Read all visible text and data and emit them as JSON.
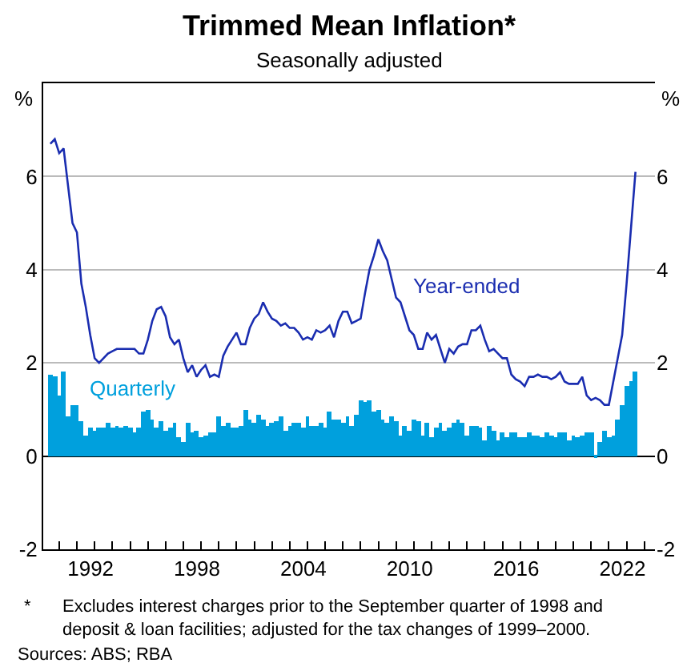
{
  "chart_data": {
    "type": "bar",
    "title": "Trimmed Mean Inflation*",
    "subtitle": "Seasonally adjusted",
    "ylabel": "%",
    "y2label": "%",
    "x": [
      1989.5,
      1989.75,
      1990,
      1990.25,
      1990.5,
      1990.75,
      1991,
      1991.25,
      1991.5,
      1991.75,
      1992,
      1992.25,
      1992.5,
      1992.75,
      1993,
      1993.25,
      1993.5,
      1993.75,
      1994,
      1994.25,
      1994.5,
      1994.75,
      1995,
      1995.25,
      1995.5,
      1995.75,
      1996,
      1996.25,
      1996.5,
      1996.75,
      1997,
      1997.25,
      1997.5,
      1997.75,
      1998,
      1998.25,
      1998.5,
      1998.75,
      1999,
      1999.25,
      1999.5,
      1999.75,
      2000,
      2000.25,
      2000.5,
      2000.75,
      2001,
      2001.25,
      2001.5,
      2001.75,
      2002,
      2002.25,
      2002.5,
      2002.75,
      2003,
      2003.25,
      2003.5,
      2003.75,
      2004,
      2004.25,
      2004.5,
      2004.75,
      2005,
      2005.25,
      2005.5,
      2005.75,
      2006,
      2006.25,
      2006.5,
      2006.75,
      2007,
      2007.25,
      2007.5,
      2007.75,
      2008,
      2008.25,
      2008.5,
      2008.75,
      2009,
      2009.25,
      2009.5,
      2009.75,
      2010,
      2010.25,
      2010.5,
      2010.75,
      2011,
      2011.25,
      2011.5,
      2011.75,
      2012,
      2012.25,
      2012.5,
      2012.75,
      2013,
      2013.25,
      2013.5,
      2013.75,
      2014,
      2014.25,
      2014.5,
      2014.75,
      2015,
      2015.25,
      2015.5,
      2015.75,
      2016,
      2016.25,
      2016.5,
      2016.75,
      2017,
      2017.25,
      2017.5,
      2017.75,
      2018,
      2018.25,
      2018.5,
      2018.75,
      2019,
      2019.25,
      2019.5,
      2019.75,
      2020,
      2020.25,
      2020.5,
      2020.75,
      2021,
      2021.25,
      2021.5,
      2021.75,
      2022,
      2022.25,
      2022.5
    ],
    "series": [
      {
        "name": "Quarterly",
        "color": "#00a0dd",
        "values": [
          1.75,
          1.7,
          1.3,
          1.8,
          0.85,
          1.1,
          1.1,
          0.75,
          0.45,
          0.6,
          0.55,
          0.6,
          0.6,
          0.7,
          0.6,
          0.65,
          0.6,
          0.65,
          0.6,
          0.5,
          0.6,
          0.95,
          1.0,
          0.8,
          0.6,
          0.75,
          0.55,
          0.6,
          0.7,
          0.4,
          0.3,
          0.7,
          0.5,
          0.55,
          0.4,
          0.45,
          0.5,
          0.5,
          0.85,
          0.65,
          0.7,
          0.6,
          0.6,
          0.65,
          1.0,
          0.8,
          0.7,
          0.9,
          0.8,
          0.65,
          0.7,
          0.75,
          0.85,
          0.55,
          0.65,
          0.7,
          0.7,
          0.6,
          0.85,
          0.65,
          0.65,
          0.7,
          0.6,
          0.95,
          0.8,
          0.8,
          0.7,
          0.85,
          0.65,
          0.9,
          1.2,
          1.15,
          1.2,
          0.95,
          1.0,
          0.8,
          0.7,
          0.85,
          0.75,
          0.45,
          0.65,
          0.55,
          0.8,
          0.75,
          0.45,
          0.7,
          0.4,
          0.6,
          0.7,
          0.55,
          0.6,
          0.7,
          0.8,
          0.7,
          0.45,
          0.65,
          0.65,
          0.6,
          0.35,
          0.65,
          0.55,
          0.35,
          0.5,
          0.4,
          0.5,
          0.5,
          0.4,
          0.4,
          0.5,
          0.45,
          0.45,
          0.4,
          0.5,
          0.45,
          0.4,
          0.5,
          0.5,
          0.35,
          0.45,
          0.4,
          0.45,
          0.5,
          0.5,
          -0.05,
          0.3,
          0.55,
          0.4,
          0.45,
          0.8,
          1.1,
          1.5,
          1.6,
          1.8
        ]
      },
      {
        "name": "Year-ended",
        "type": "line",
        "color": "#1a2db0",
        "values": [
          6.7,
          6.8,
          6.5,
          6.6,
          5.8,
          5.0,
          4.8,
          3.7,
          3.2,
          2.6,
          2.1,
          2.0,
          2.1,
          2.2,
          2.25,
          2.3,
          2.3,
          2.3,
          2.3,
          2.3,
          2.2,
          2.2,
          2.5,
          2.9,
          3.15,
          3.2,
          3.0,
          2.55,
          2.4,
          2.5,
          2.1,
          1.8,
          1.95,
          1.7,
          1.85,
          1.95,
          1.7,
          1.75,
          1.7,
          2.15,
          2.35,
          2.5,
          2.65,
          2.4,
          2.4,
          2.75,
          2.95,
          3.05,
          3.3,
          3.1,
          2.95,
          2.9,
          2.8,
          2.85,
          2.75,
          2.75,
          2.65,
          2.5,
          2.55,
          2.5,
          2.7,
          2.65,
          2.7,
          2.8,
          2.55,
          2.9,
          3.1,
          3.1,
          2.85,
          2.9,
          2.95,
          3.5,
          4.0,
          4.3,
          4.65,
          4.4,
          4.2,
          3.8,
          3.4,
          3.3,
          3.0,
          2.7,
          2.6,
          2.3,
          2.3,
          2.65,
          2.5,
          2.6,
          2.3,
          2.0,
          2.3,
          2.2,
          2.35,
          2.4,
          2.4,
          2.7,
          2.7,
          2.8,
          2.5,
          2.25,
          2.3,
          2.2,
          2.1,
          2.1,
          1.75,
          1.65,
          1.6,
          1.5,
          1.7,
          1.7,
          1.75,
          1.7,
          1.7,
          1.65,
          1.7,
          1.8,
          1.6,
          1.55,
          1.55,
          1.55,
          1.7,
          1.3,
          1.2,
          1.25,
          1.2,
          1.1,
          1.1,
          1.6,
          2.1,
          2.6,
          3.7,
          4.9,
          6.1
        ]
      }
    ],
    "xlim": [
      1989.1,
      2023.6
    ],
    "xticks": [
      {
        "value": 1990,
        "label": null
      },
      {
        "value": 1991,
        "label": null
      },
      1992,
      {
        "value": 1993,
        "label": null
      },
      {
        "value": 1994,
        "label": null
      },
      {
        "value": 1995,
        "label": null
      },
      {
        "value": 1996,
        "label": null
      },
      {
        "value": 1997,
        "label": null
      },
      1998,
      {
        "value": 1999,
        "label": null
      },
      {
        "value": 2000,
        "label": null
      },
      {
        "value": 2001,
        "label": null
      },
      {
        "value": 2002,
        "label": null
      },
      {
        "value": 2003,
        "label": null
      },
      2004,
      {
        "value": 2005,
        "label": null
      },
      {
        "value": 2006,
        "label": null
      },
      {
        "value": 2007,
        "label": null
      },
      {
        "value": 2008,
        "label": null
      },
      {
        "value": 2009,
        "label": null
      },
      2010,
      {
        "value": 2011,
        "label": null
      },
      {
        "value": 2012,
        "label": null
      },
      {
        "value": 2013,
        "label": null
      },
      {
        "value": 2014,
        "label": null
      },
      {
        "value": 2015,
        "label": null
      },
      2016,
      {
        "value": 2017,
        "label": null
      },
      {
        "value": 2018,
        "label": null
      },
      {
        "value": 2019,
        "label": null
      },
      {
        "value": 2020,
        "label": null
      },
      {
        "value": 2021,
        "label": null
      },
      2022,
      {
        "value": 2023,
        "label": null
      }
    ],
    "ylim": [
      -2,
      8
    ],
    "yticks": [
      -2,
      0,
      2,
      4,
      6
    ],
    "y2lim": [
      -2,
      8
    ],
    "y2ticks": [
      -2,
      0,
      2,
      4,
      6
    ],
    "grid": "y",
    "annotations": [
      "*\tExcludes interest charges prior to the September quarter of 1998 and\ndeposit & loan facilities; adjusted for the tax changes of 1999–2000.",
      "Sources: ABS; RBA"
    ]
  }
}
